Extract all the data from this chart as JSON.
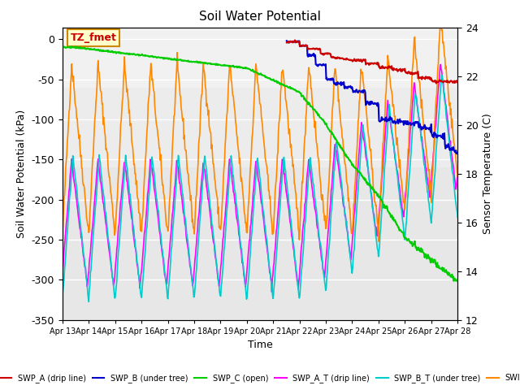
{
  "title": "Soil Water Potential",
  "ylabel_left": "Soil Water Potential (kPa)",
  "ylabel_right": "Sensor Temperature (C)",
  "xlabel": "Time",
  "ylim_left": [
    -350,
    15
  ],
  "ylim_right": [
    12,
    24
  ],
  "yticks_left": [
    0,
    -50,
    -100,
    -150,
    -200,
    -250,
    -300,
    -350
  ],
  "yticks_right": [
    12,
    14,
    16,
    18,
    20,
    22,
    24
  ],
  "xtick_labels": [
    "Apr 13",
    "Apr 14",
    "Apr 15",
    "Apr 16",
    "Apr 17",
    "Apr 18",
    "Apr 19",
    "Apr 20",
    "Apr 21",
    "Apr 22",
    "Apr 23",
    "Apr 24",
    "Apr 25",
    "Apr 26",
    "Apr 27",
    "Apr 28"
  ],
  "annotation_text": "TZ_fmet",
  "annotation_color": "#cc0000",
  "annotation_bg": "#ffffcc",
  "annotation_border": "#cc8800",
  "colors": {
    "SWP_A": "#cc0000",
    "SWP_B": "#0000cc",
    "SWP_C": "#00cc00",
    "SWP_A_T": "#ff00ff",
    "SWP_B_T": "#00cccc",
    "SWI": "#ff8800"
  },
  "legend": [
    {
      "label": "SWP_A (drip line)",
      "color": "#cc0000"
    },
    {
      "label": "SWP_B (under tree)",
      "color": "#0000cc"
    },
    {
      "label": "SWP_C (open)",
      "color": "#00cc00"
    },
    {
      "label": "SWP_A_T (drip line)",
      "color": "#ff00ff"
    },
    {
      "label": "SWP_B_T (under tree)",
      "color": "#00cccc"
    },
    {
      "label": "SWI",
      "color": "#ff8800"
    }
  ]
}
